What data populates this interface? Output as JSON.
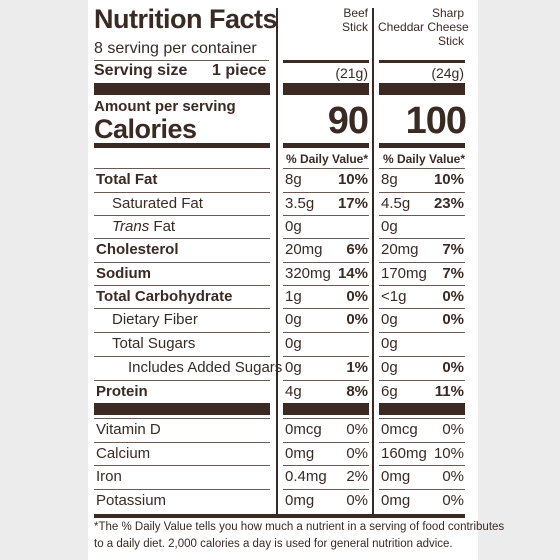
{
  "label": {
    "title": "Nutrition Facts",
    "servings_per_container": "8 serving per container",
    "serving_size_label": "Serving size",
    "serving_size_value": "1 piece",
    "amount_per_serving": "Amount per serving",
    "calories_label": "Calories",
    "daily_value_header": "% Daily Value*",
    "products": [
      {
        "name_line1": "",
        "name_line2": "Beef",
        "name_line3": "Stick",
        "serving_weight": "(21g)",
        "calories": "90"
      },
      {
        "name_line1": "Sharp",
        "name_line2": "Cheddar Cheese",
        "name_line3": "Stick",
        "serving_weight": "(24g)",
        "calories": "100"
      }
    ],
    "nutrients": [
      {
        "name": "Total Fat",
        "p1_amount": "8g",
        "p1_dv": "10%",
        "p2_amount": "8g",
        "p2_dv": "10%"
      },
      {
        "name": "Saturated Fat",
        "p1_amount": "3.5g",
        "p1_dv": "17%",
        "p2_amount": "4.5g",
        "p2_dv": "23%"
      },
      {
        "name_italic": "Trans",
        "name_rest": " Fat",
        "p1_amount": "0g",
        "p1_dv": "",
        "p2_amount": "0g",
        "p2_dv": ""
      },
      {
        "name": "Cholesterol",
        "p1_amount": "20mg",
        "p1_dv": "6%",
        "p2_amount": "20mg",
        "p2_dv": "7%"
      },
      {
        "name": "Sodium",
        "p1_amount": "320mg",
        "p1_dv": "14%",
        "p2_amount": "170mg",
        "p2_dv": "7%"
      },
      {
        "name": "Total Carbohydrate",
        "p1_amount": "1g",
        "p1_dv": "0%",
        "p2_amount": "<1g",
        "p2_dv": "0%"
      },
      {
        "name": "Dietary Fiber",
        "p1_amount": "0g",
        "p1_dv": "0%",
        "p2_amount": "0g",
        "p2_dv": "0%"
      },
      {
        "name": "Total Sugars",
        "p1_amount": "0g",
        "p1_dv": "",
        "p2_amount": "0g",
        "p2_dv": ""
      },
      {
        "name": "Includes Added Sugars",
        "p1_amount": "0g",
        "p1_dv": "1%",
        "p2_amount": "0g",
        "p2_dv": "0%"
      },
      {
        "name": "Protein",
        "p1_amount": "4g",
        "p1_dv": "8%",
        "p2_amount": "6g",
        "p2_dv": "11%"
      }
    ],
    "vitamins": [
      {
        "name": "Vitamin D",
        "p1_amount": "0mcg",
        "p1_dv": "0%",
        "p2_amount": "0mcg",
        "p2_dv": "0%"
      },
      {
        "name": "Calcium",
        "p1_amount": "0mg",
        "p1_dv": "0%",
        "p2_amount": "160mg",
        "p2_dv": "10%"
      },
      {
        "name": "Iron",
        "p1_amount": "0.4mg",
        "p1_dv": "2%",
        "p2_amount": "0mg",
        "p2_dv": "0%"
      },
      {
        "name": "Potassium",
        "p1_amount": "0mg",
        "p1_dv": "0%",
        "p2_amount": "0mg",
        "p2_dv": "0%"
      }
    ],
    "footnote_line1": "*The % Daily Value tells you how much a nutrient in a serving of food contributes",
    "footnote_line2": "to a daily diet. 2,000 calories a day is used for general nutrition advice."
  }
}
